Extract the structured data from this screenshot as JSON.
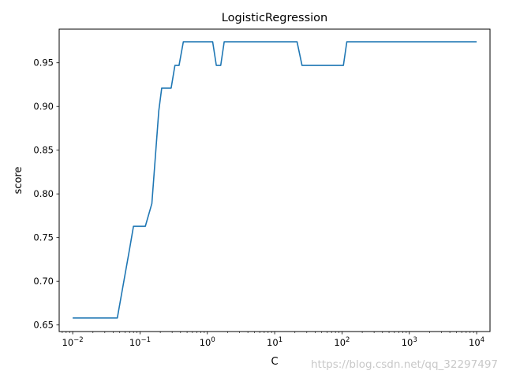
{
  "chart_data": {
    "type": "line",
    "title": "LogisticRegression",
    "xlabel": "C",
    "ylabel": "score",
    "xscale": "log",
    "xlim": [
      0.0063,
      15800
    ],
    "ylim": [
      0.6425,
      0.9885
    ],
    "grid": false,
    "legend": "none",
    "line_color": "#1f77b4",
    "x_ticks": [
      {
        "value": 0.01,
        "base": "10",
        "exp": "−2"
      },
      {
        "value": 0.1,
        "base": "10",
        "exp": "−1"
      },
      {
        "value": 1,
        "base": "10",
        "exp": "0"
      },
      {
        "value": 10,
        "base": "10",
        "exp": "1"
      },
      {
        "value": 100,
        "base": "10",
        "exp": "2"
      },
      {
        "value": 1000,
        "base": "10",
        "exp": "3"
      },
      {
        "value": 10000,
        "base": "10",
        "exp": "4"
      }
    ],
    "y_ticks": [
      {
        "value": 0.65,
        "label": "0.65"
      },
      {
        "value": 0.7,
        "label": "0.70"
      },
      {
        "value": 0.75,
        "label": "0.75"
      },
      {
        "value": 0.8,
        "label": "0.80"
      },
      {
        "value": 0.85,
        "label": "0.85"
      },
      {
        "value": 0.9,
        "label": "0.90"
      },
      {
        "value": 0.95,
        "label": "0.95"
      }
    ],
    "series": [
      {
        "x": [
          0.01,
          0.046,
          0.07,
          0.08,
          0.12,
          0.15,
          0.19,
          0.21,
          0.29,
          0.33,
          0.38,
          0.44,
          1.2,
          1.36,
          1.58,
          1.78,
          21.5,
          25.5,
          105,
          118,
          10000
        ],
        "y": [
          0.658,
          0.658,
          0.737,
          0.763,
          0.763,
          0.789,
          0.895,
          0.921,
          0.921,
          0.947,
          0.947,
          0.974,
          0.974,
          0.947,
          0.947,
          0.974,
          0.974,
          0.947,
          0.947,
          0.974,
          0.974
        ]
      }
    ]
  },
  "watermark": "https://blog.csdn.net/qq_32297497"
}
